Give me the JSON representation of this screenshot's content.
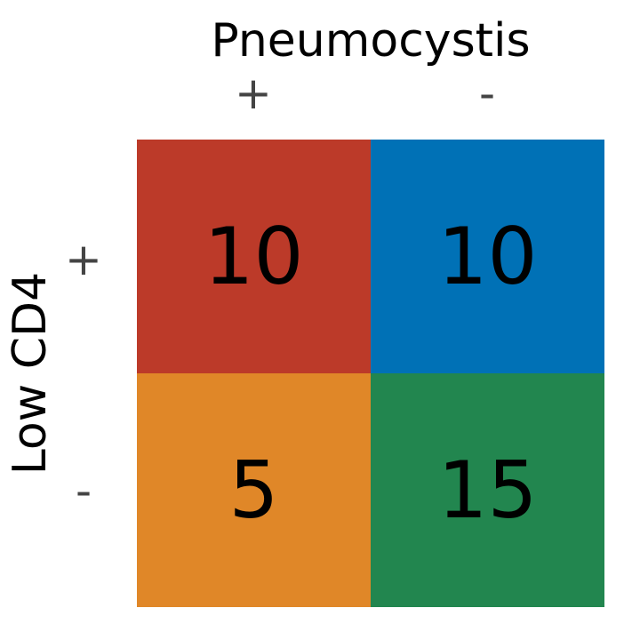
{
  "chart_data": {
    "type": "heatmap",
    "title": "",
    "xlabel": "Pneumocystis",
    "ylabel": "Low CD4",
    "x_ticks": [
      "+",
      "-"
    ],
    "y_ticks": [
      "+",
      "-"
    ],
    "values": [
      [
        10,
        10
      ],
      [
        5,
        15
      ]
    ],
    "cells": [
      {
        "row": "+",
        "col": "+",
        "value": "10",
        "color": "#bc3a29"
      },
      {
        "row": "+",
        "col": "-",
        "value": "10",
        "color": "#0071b6"
      },
      {
        "row": "-",
        "col": "+",
        "value": "5",
        "color": "#e08728"
      },
      {
        "row": "-",
        "col": "-",
        "value": "15",
        "color": "#22864f"
      }
    ],
    "grid": false
  }
}
